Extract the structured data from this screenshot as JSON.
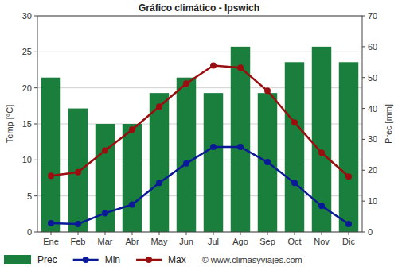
{
  "chart_data": {
    "type": "bar",
    "title": "Gráfico climático - Ipswich",
    "categories": [
      "Ene",
      "Feb",
      "Mar",
      "Abr",
      "May",
      "Jun",
      "Jul",
      "Ago",
      "Sep",
      "Oct",
      "Nov",
      "Dic"
    ],
    "series": [
      {
        "name": "Prec",
        "type": "bar",
        "axis": "y2",
        "color": "#1a7f3c",
        "values": [
          50,
          40,
          35,
          35,
          45,
          50,
          45,
          60,
          45,
          55,
          60,
          55
        ]
      },
      {
        "name": "Min",
        "type": "line",
        "color": "#0a1a96",
        "marker": "circle",
        "values": [
          1.2,
          1.1,
          2.6,
          3.8,
          6.8,
          9.5,
          11.8,
          11.8,
          9.7,
          6.8,
          3.6,
          1.1
        ]
      },
      {
        "name": "Max",
        "type": "line",
        "color": "#990f0f",
        "marker": "circle",
        "values": [
          7.8,
          8.3,
          11.3,
          14.2,
          17.4,
          20.6,
          23.1,
          22.8,
          19.6,
          15.2,
          11.0,
          7.7
        ]
      }
    ],
    "ylabel": "Temp [°C]",
    "y2label": "Prec [mm]",
    "ylim": [
      0,
      30
    ],
    "yticks": [
      0,
      5,
      10,
      15,
      20,
      25,
      30
    ],
    "y2lim": [
      0,
      70
    ],
    "y2ticks": [
      0,
      10,
      20,
      30,
      40,
      50,
      60,
      70
    ],
    "grid": true,
    "legend": "bottom",
    "annotations": [
      "© www.climasyviajes.com"
    ]
  }
}
